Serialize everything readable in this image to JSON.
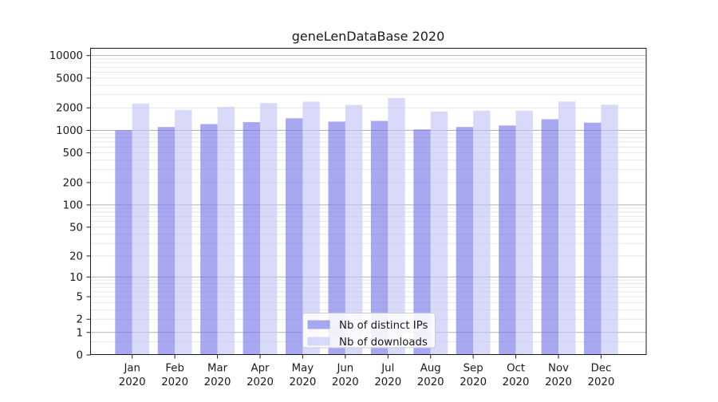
{
  "title": "geneLenDataBase 2020",
  "chart_data": {
    "type": "bar",
    "title": "geneLenDataBase 2020",
    "categories": [
      "Jan 2020",
      "Feb 2020",
      "Mar 2020",
      "Apr 2020",
      "May 2020",
      "Jun 2020",
      "Jul 2020",
      "Aug 2020",
      "Sep 2020",
      "Oct 2020",
      "Nov 2020",
      "Dec 2020"
    ],
    "month_labels": [
      "Jan",
      "Feb",
      "Mar",
      "Apr",
      "May",
      "Jun",
      "Jul",
      "Aug",
      "Sep",
      "Oct",
      "Nov",
      "Dec"
    ],
    "year_label": "2020",
    "series": [
      {
        "name": "Nb of distinct IPs",
        "color": "rgba(115,115,232,0.62)",
        "values": [
          1005,
          1110,
          1215,
          1290,
          1450,
          1310,
          1340,
          1030,
          1110,
          1160,
          1410,
          1270
        ]
      },
      {
        "name": "Nb of downloads",
        "color": "rgba(194,194,245,0.62)",
        "values": [
          2280,
          1880,
          2055,
          2320,
          2420,
          2190,
          2710,
          1790,
          1835,
          1835,
          2435,
          2205
        ]
      }
    ],
    "y_axis": {
      "scale": "symlog",
      "tick_values": [
        10000,
        5000,
        2000,
        1000,
        500,
        200,
        100,
        50,
        20,
        10,
        5,
        2,
        1,
        0
      ],
      "ylim": [
        0,
        12500
      ],
      "major_grid_values": [
        1,
        10,
        100,
        1000,
        10000
      ]
    },
    "grid": true,
    "legend_position": "bottom-center",
    "colors": {
      "major_gridline": "#b3b3b3",
      "minor_gridline": "#e7e7e7",
      "spine": "#1a1a1a",
      "legend_border": "#cccccc",
      "legend_fill": "rgba(255,255,255,0.85)"
    }
  }
}
